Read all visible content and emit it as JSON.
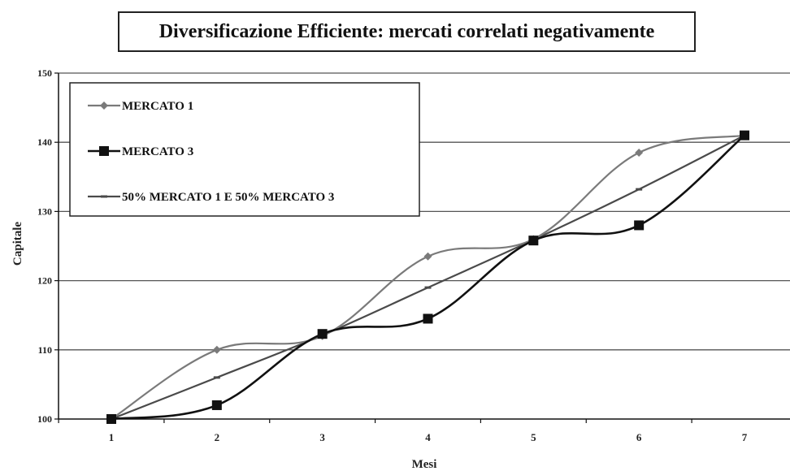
{
  "chart_data": {
    "type": "line",
    "title": "Diversificazione Efficiente: mercati correlati negativamente",
    "xlabel": "Mesi",
    "ylabel": "Capitale",
    "categories": [
      "1",
      "2",
      "3",
      "4",
      "5",
      "6",
      "7"
    ],
    "ylim": [
      100,
      150
    ],
    "yticks": [
      100,
      110,
      120,
      130,
      140,
      150
    ],
    "grid": true,
    "legend_position": "top-left",
    "series": [
      {
        "name": "MERCATO 1",
        "values": [
          100,
          110,
          112,
          123.5,
          126,
          138.5,
          141
        ],
        "color": "#7a7a7a",
        "marker": "diamond"
      },
      {
        "name": "MERCATO 3",
        "values": [
          100,
          102,
          112.3,
          114.5,
          125.8,
          128,
          141
        ],
        "color": "#111111",
        "marker": "square"
      },
      {
        "name": "50% MERCATO 1 E 50% MERCATO 3",
        "values": [
          100,
          106,
          112.1,
          119,
          125.9,
          133.2,
          141
        ],
        "color": "#4a4a4a",
        "marker": "dash"
      }
    ]
  }
}
